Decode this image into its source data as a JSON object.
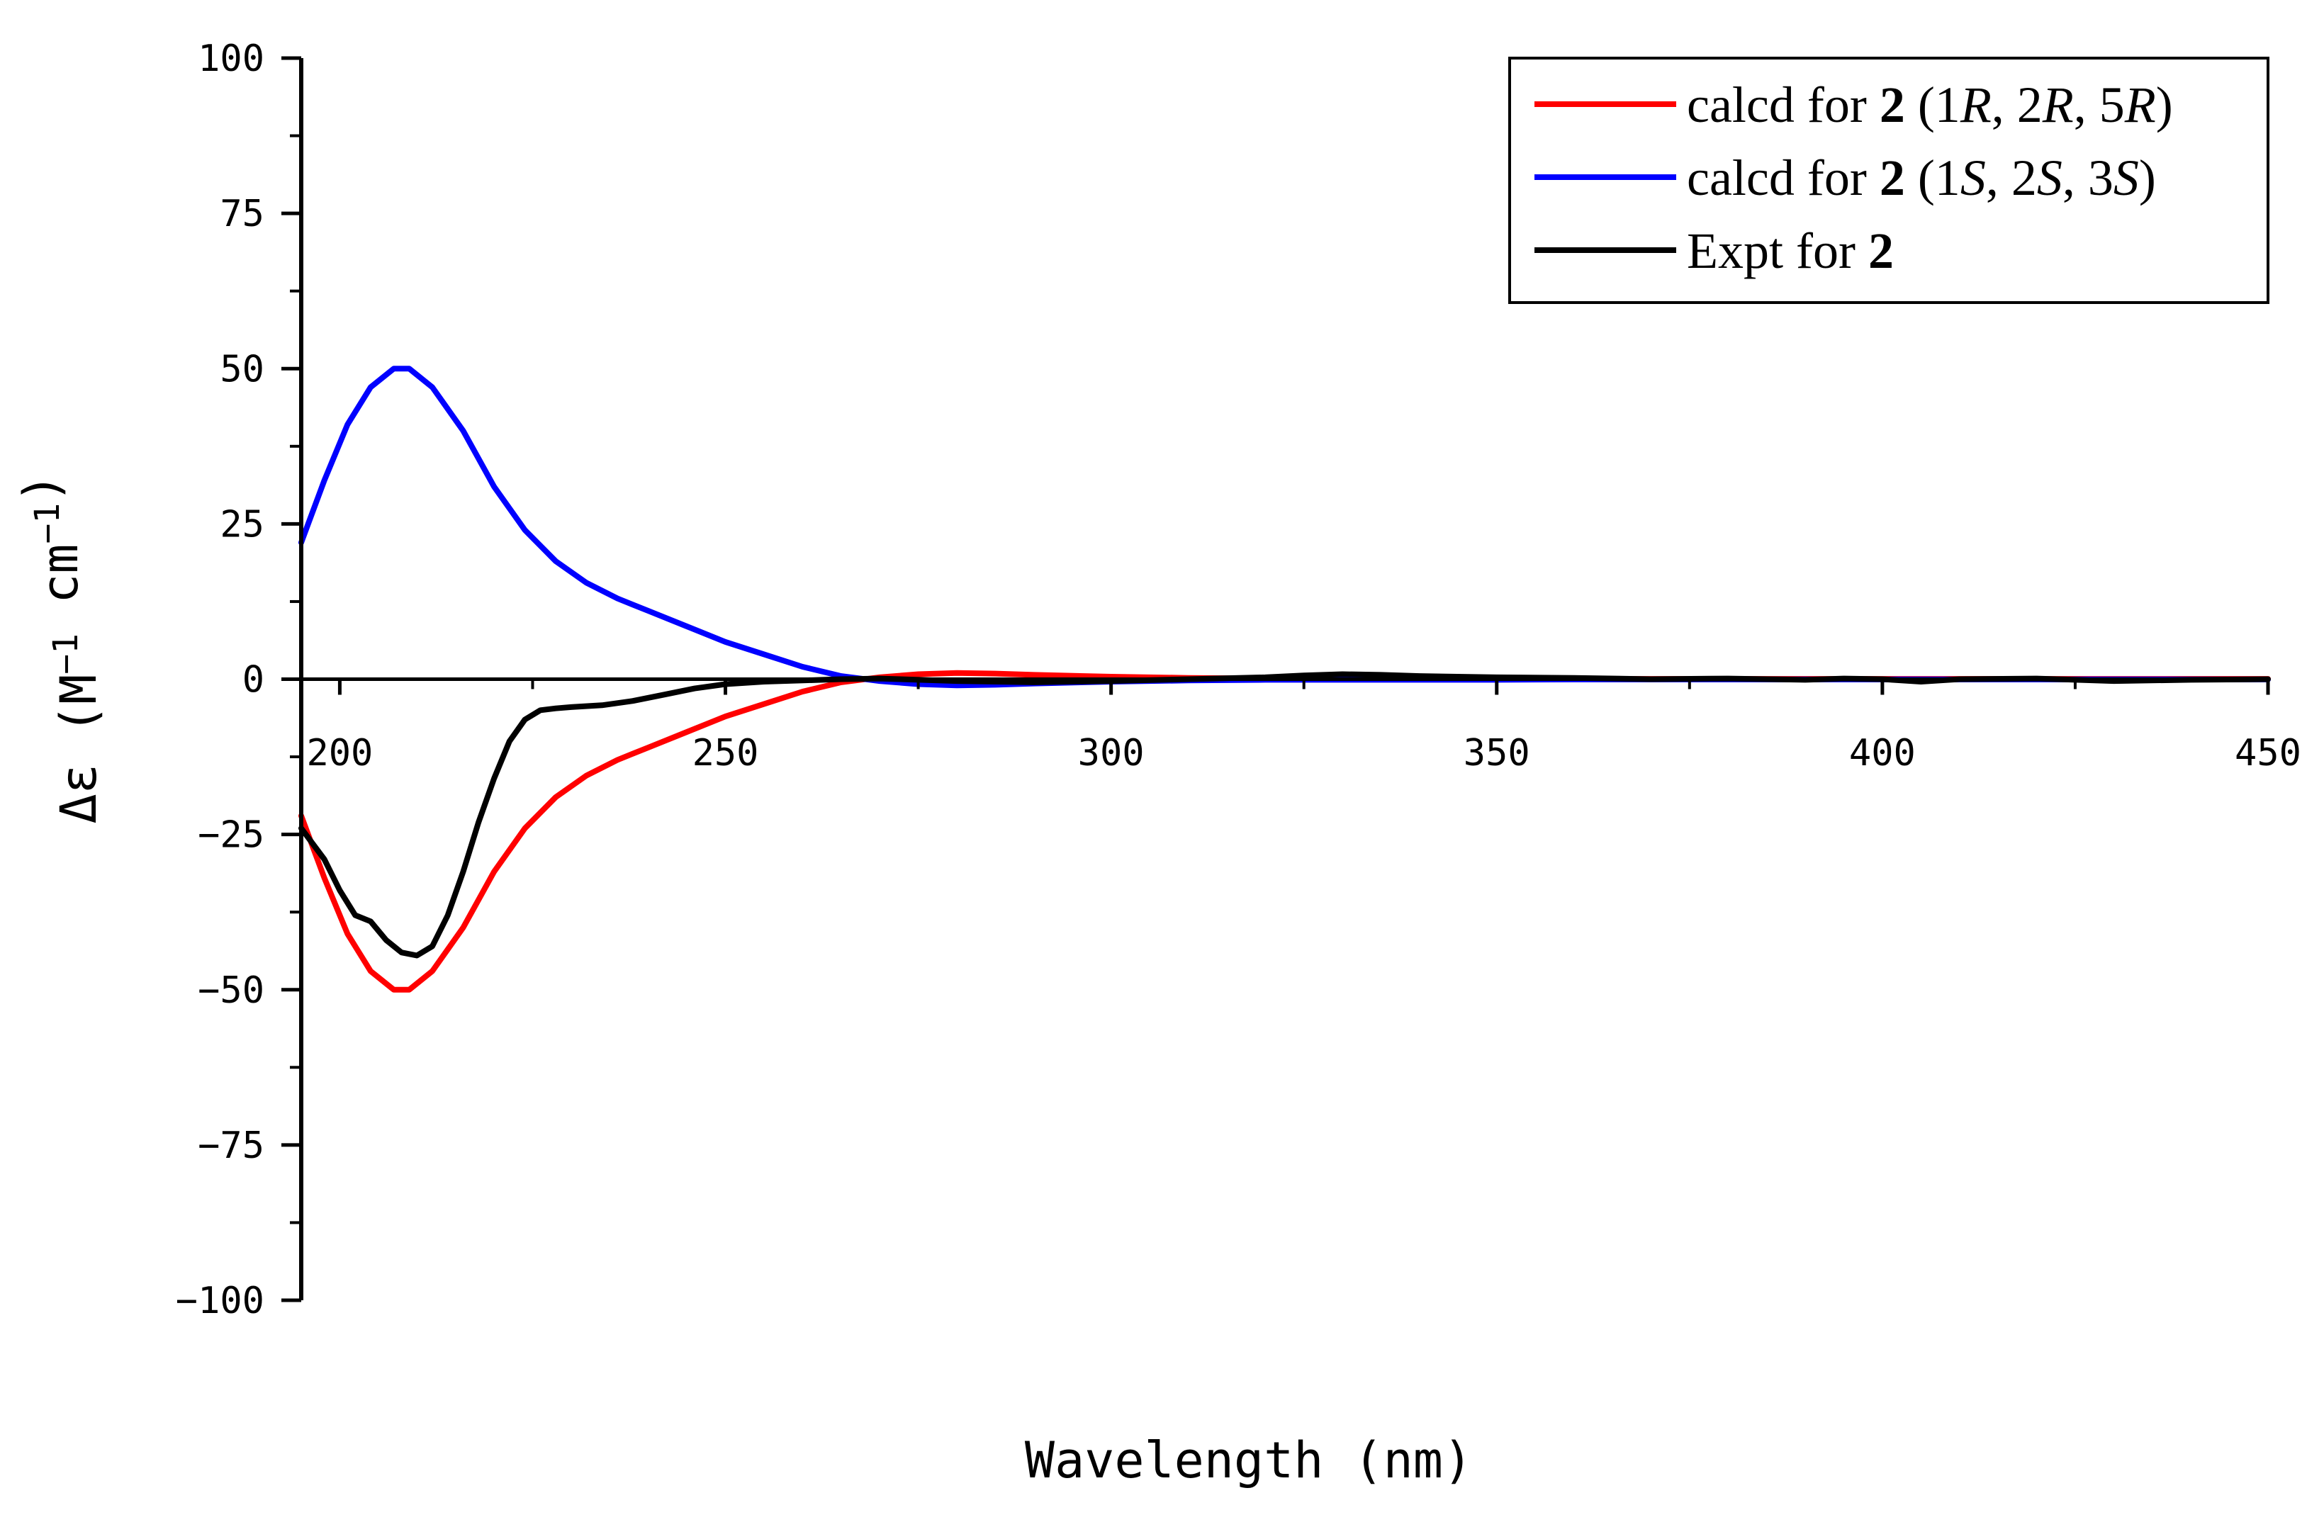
{
  "chart_data": {
    "type": "line",
    "title": "",
    "xlabel": "Wavelength (nm)",
    "ylabel": {
      "prefix": "Δε (M",
      "sup1": "−1",
      "mid": " cm",
      "sup2": "−1",
      "suffix": ")"
    },
    "xlim": [
      195,
      450
    ],
    "ylim": [
      -100,
      100
    ],
    "x_ticks": [
      200,
      250,
      300,
      350,
      400,
      450
    ],
    "x_tick_labels": [
      "200",
      "250",
      "300",
      "350",
      "400",
      "450"
    ],
    "y_ticks": [
      100,
      75,
      50,
      25,
      0,
      -25,
      -50,
      -75,
      -100
    ],
    "y_tick_labels": [
      "100",
      "75",
      "50",
      "25",
      "0",
      "−25",
      "−50",
      "−75",
      "−100"
    ],
    "legend_position": "top-right",
    "series": [
      {
        "name": "calcd for 2 (1R, 2R, 5R)",
        "legend": [
          {
            "t": "calcd for ",
            "s": "n"
          },
          {
            "t": "2",
            "s": "b"
          },
          {
            "t": " (1",
            "s": "n"
          },
          {
            "t": "R",
            "s": "i"
          },
          {
            "t": ", 2",
            "s": "n"
          },
          {
            "t": "R",
            "s": "i"
          },
          {
            "t": ", 5",
            "s": "n"
          },
          {
            "t": "R",
            "s": "i"
          },
          {
            "t": ")",
            "s": "n"
          }
        ],
        "color": "#ff0000",
        "x": [
          195,
          198,
          201,
          204,
          207,
          209,
          212,
          216,
          220,
          224,
          228,
          232,
          236,
          240,
          245,
          250,
          255,
          260,
          265,
          270,
          275,
          280,
          285,
          290,
          300,
          310,
          320,
          330,
          340,
          350,
          360,
          380,
          400,
          420,
          450
        ],
        "y": [
          -22,
          -32,
          -41,
          -47,
          -50,
          -50,
          -47,
          -40,
          -31,
          -24,
          -19,
          -15.5,
          -13,
          -11,
          -8.5,
          -6,
          -4,
          -2,
          -0.5,
          0.3,
          0.8,
          1.0,
          0.9,
          0.7,
          0.4,
          0.2,
          0.1,
          0.1,
          0.1,
          0.1,
          0.05,
          0.05,
          0.05,
          0.05,
          0.05
        ]
      },
      {
        "name": "calcd for 2 (1S, 2S, 3S)",
        "legend": [
          {
            "t": "calcd for ",
            "s": "n"
          },
          {
            "t": "2",
            "s": "b"
          },
          {
            "t": " (1",
            "s": "n"
          },
          {
            "t": "S",
            "s": "i"
          },
          {
            "t": ", 2",
            "s": "n"
          },
          {
            "t": "S",
            "s": "i"
          },
          {
            "t": ", 3",
            "s": "n"
          },
          {
            "t": "S",
            "s": "i"
          },
          {
            "t": ")",
            "s": "n"
          }
        ],
        "color": "#0000ff",
        "x": [
          195,
          198,
          201,
          204,
          207,
          209,
          212,
          216,
          220,
          224,
          228,
          232,
          236,
          240,
          245,
          250,
          255,
          260,
          265,
          270,
          275,
          280,
          285,
          290,
          300,
          310,
          320,
          330,
          340,
          350,
          360,
          380,
          400,
          420,
          450
        ],
        "y": [
          22,
          32,
          41,
          47,
          50,
          50,
          47,
          40,
          31,
          24,
          19,
          15.5,
          13,
          11,
          8.5,
          6,
          4,
          2,
          0.5,
          -0.3,
          -0.8,
          -1.0,
          -0.9,
          -0.7,
          -0.4,
          -0.2,
          -0.1,
          -0.1,
          -0.1,
          -0.1,
          -0.05,
          -0.05,
          -0.05,
          -0.05,
          -0.05
        ]
      },
      {
        "name": "Expt for 2",
        "legend": [
          {
            "t": "Expt for ",
            "s": "n"
          },
          {
            "t": "2",
            "s": "b"
          }
        ],
        "color": "#000000",
        "x": [
          195,
          198,
          200,
          202,
          204,
          206,
          208,
          210,
          212,
          214,
          216,
          218,
          220,
          222,
          224,
          226,
          228,
          230,
          234,
          238,
          242,
          246,
          250,
          255,
          260,
          265,
          270,
          280,
          290,
          300,
          310,
          320,
          325,
          330,
          335,
          340,
          350,
          360,
          370,
          380,
          390,
          395,
          400,
          405,
          410,
          420,
          430,
          440,
          450
        ],
        "y": [
          -24,
          -29,
          -34,
          -38,
          -39,
          -42,
          -44,
          -44.5,
          -43,
          -38,
          -31,
          -23,
          -16,
          -10,
          -6.5,
          -5,
          -4.7,
          -4.5,
          -4.2,
          -3.5,
          -2.5,
          -1.5,
          -0.8,
          -0.4,
          -0.2,
          0,
          0.1,
          -0.3,
          -0.5,
          -0.3,
          0,
          0.3,
          0.6,
          0.8,
          0.7,
          0.5,
          0.3,
          0.2,
          0,
          0.1,
          -0.1,
          0.1,
          0,
          -0.4,
          0,
          0.1,
          -0.3,
          -0.1,
          0
        ]
      }
    ]
  }
}
